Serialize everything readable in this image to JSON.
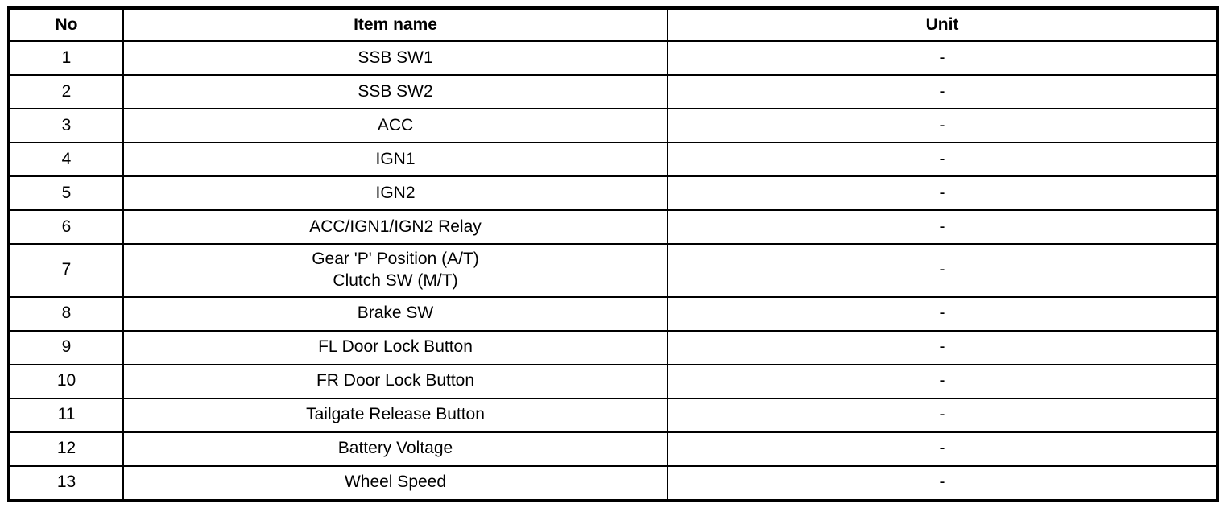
{
  "page": {
    "background": "#ffffff",
    "border_color": "#000000",
    "text_color": "#000000"
  },
  "table": {
    "headers": [
      "No",
      "Item name",
      "Unit"
    ],
    "rows": [
      {
        "no": "1",
        "item": "SSB SW1",
        "unit": "-"
      },
      {
        "no": "2",
        "item": "SSB SW2",
        "unit": "-"
      },
      {
        "no": "3",
        "item": "ACC",
        "unit": "-"
      },
      {
        "no": "4",
        "item": "IGN1",
        "unit": "-"
      },
      {
        "no": "5",
        "item": "IGN2",
        "unit": "-"
      },
      {
        "no": "6",
        "item": "ACC/IGN1/IGN2 Relay",
        "unit": "-"
      },
      {
        "no": "7",
        "item": "Gear 'P' Position (A/T)\nClutch SW (M/T)",
        "unit": "-"
      },
      {
        "no": "8",
        "item": "Brake SW",
        "unit": "-"
      },
      {
        "no": "9",
        "item": "FL Door Lock Button",
        "unit": "-"
      },
      {
        "no": "10",
        "item": "FR Door Lock Button",
        "unit": "-"
      },
      {
        "no": "11",
        "item": "Tailgate Release Button",
        "unit": "-"
      },
      {
        "no": "12",
        "item": "Battery Voltage",
        "unit": "-"
      },
      {
        "no": "13",
        "item": "Wheel Speed",
        "unit": "-"
      }
    ]
  }
}
